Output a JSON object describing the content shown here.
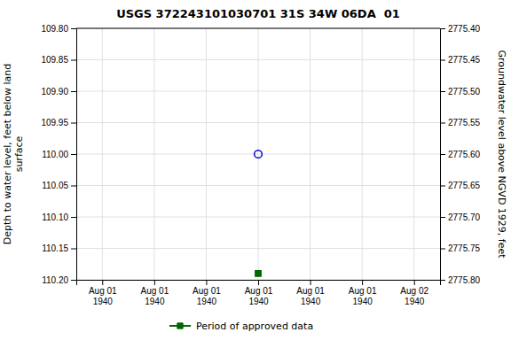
{
  "chart_data": {
    "type": "scatter",
    "title": "USGS 372243101030701 31S 34W 06DA  01",
    "categories": [
      "Aug 01\n1940",
      "Aug 01\n1940",
      "Aug 01\n1940",
      "Aug 01\n1940",
      "Aug 01\n1940",
      "Aug 01\n1940",
      "Aug 02\n1940"
    ],
    "series": [
      {
        "color": "#0000cc",
        "marker": "circle-open",
        "values": [
          null,
          null,
          null,
          110.0,
          null,
          null,
          null
        ]
      },
      {
        "name": "Period of approved data",
        "color": "#006600",
        "marker": "square",
        "values": [
          null,
          null,
          null,
          110.19,
          null,
          null,
          null
        ]
      }
    ],
    "ylabel": "Depth to water level, feet below land\nsurface",
    "y2label": "Groundwater level above NGVD 1929, feet",
    "ylim": [
      110.2,
      109.8
    ],
    "yticks": [
      {
        "value": 109.8,
        "label": "109.80"
      },
      {
        "value": 109.85,
        "label": "109.85"
      },
      {
        "value": 109.9,
        "label": "109.90"
      },
      {
        "value": 109.95,
        "label": "109.95"
      },
      {
        "value": 110.0,
        "label": "110.00"
      },
      {
        "value": 110.05,
        "label": "110.05"
      },
      {
        "value": 110.1,
        "label": "110.10"
      },
      {
        "value": 110.15,
        "label": "110.15"
      },
      {
        "value": 110.2,
        "label": "110.20"
      }
    ],
    "y2lim": [
      2775.8,
      2775.4
    ],
    "y2ticks": [
      {
        "value": 2775.8,
        "label": "2775.80"
      },
      {
        "value": 2775.75,
        "label": "2775.75"
      },
      {
        "value": 2775.7,
        "label": "2775.70"
      },
      {
        "value": 2775.65,
        "label": "2775.65"
      },
      {
        "value": 2775.6,
        "label": "2775.60"
      },
      {
        "value": 2775.55,
        "label": "2775.55"
      },
      {
        "value": 2775.5,
        "label": "2775.50"
      },
      {
        "value": 2775.45,
        "label": "2775.45"
      },
      {
        "value": 2775.4,
        "label": "2775.40"
      }
    ],
    "grid": true,
    "legend": "bottom"
  }
}
